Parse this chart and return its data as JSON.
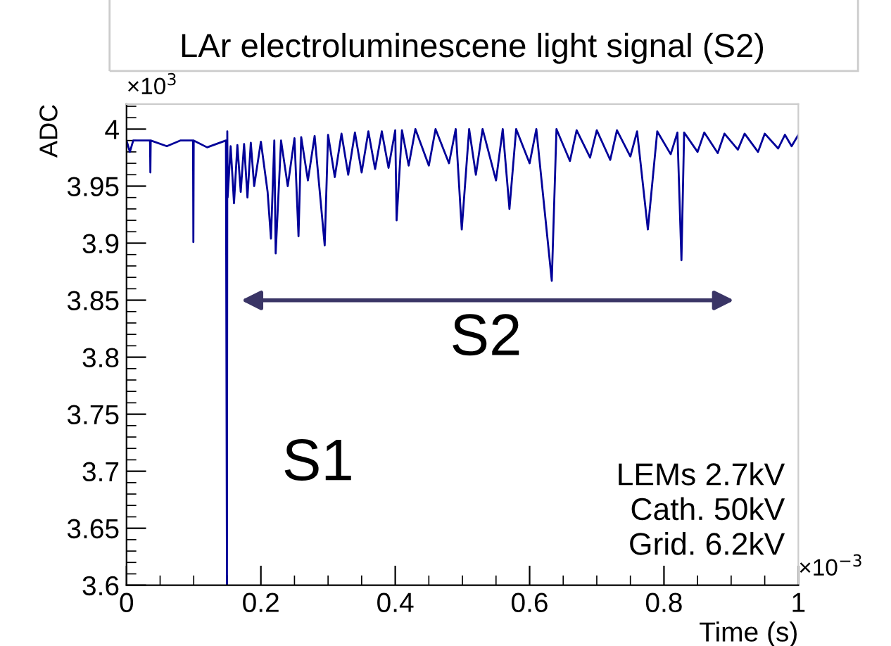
{
  "chart_data": {
    "type": "line",
    "title": "LAr electroluminescene light signal (S2)",
    "xlabel": "Time (s)",
    "ylabel": "ADC",
    "xlim": [
      0,
      1
    ],
    "ylim": [
      3.6,
      4.022
    ],
    "xticks": [
      0,
      0.2,
      0.4,
      0.6,
      0.8,
      1
    ],
    "yticks": [
      3.6,
      3.65,
      3.7,
      3.75,
      3.8,
      3.85,
      3.9,
      3.95,
      4
    ],
    "grid": false,
    "legend": false,
    "marker": "none",
    "line_style": "solid",
    "annotations": [
      "×10$^{3}$",
      "×10$^{−3}$",
      "S1",
      "S2",
      "LEMs 2.7kV\nCath. 50kV\nGrid. 6.2kV"
    ],
    "series": [
      {
        "color": "#000099",
        "x": [
          0,
          0.005,
          0.01,
          0.035,
          0.0355,
          0.036,
          0.06,
          0.08,
          0.099,
          0.0995,
          0.1,
          0.12,
          0.148,
          0.1495,
          0.15,
          0.1505,
          0.155,
          0.16,
          0.165,
          0.17,
          0.175,
          0.18,
          0.185,
          0.19,
          0.2,
          0.21,
          0.215,
          0.22,
          0.222,
          0.23,
          0.24,
          0.25,
          0.256,
          0.26,
          0.27,
          0.28,
          0.295,
          0.3,
          0.31,
          0.32,
          0.33,
          0.34,
          0.35,
          0.36,
          0.37,
          0.38,
          0.39,
          0.4,
          0.402,
          0.41,
          0.42,
          0.43,
          0.45,
          0.46,
          0.48,
          0.49,
          0.499,
          0.51,
          0.52,
          0.53,
          0.55,
          0.56,
          0.57,
          0.58,
          0.6,
          0.61,
          0.633,
          0.64,
          0.66,
          0.67,
          0.69,
          0.7,
          0.72,
          0.73,
          0.75,
          0.76,
          0.776,
          0.79,
          0.81,
          0.82,
          0.826,
          0.83,
          0.85,
          0.86,
          0.88,
          0.89,
          0.91,
          0.92,
          0.94,
          0.95,
          0.97,
          0.98,
          0.99,
          1
        ],
        "values": [
          3.99,
          3.98,
          3.99,
          3.99,
          3.962,
          3.99,
          3.985,
          3.99,
          3.99,
          3.901,
          3.99,
          3.984,
          3.99,
          3.6,
          3.998,
          3.94,
          3.985,
          3.935,
          3.986,
          3.945,
          3.987,
          3.94,
          3.988,
          3.95,
          3.989,
          3.945,
          3.904,
          3.99,
          3.891,
          3.99,
          3.95,
          3.992,
          3.906,
          3.993,
          3.955,
          3.994,
          3.898,
          3.995,
          3.958,
          3.996,
          3.96,
          3.997,
          3.962,
          3.998,
          3.965,
          3.998,
          3.966,
          3.999,
          3.92,
          3.999,
          3.968,
          4.0,
          3.968,
          4.0,
          3.97,
          4.0,
          3.912,
          4.0,
          3.96,
          4.0,
          3.955,
          4.0,
          3.93,
          4.0,
          3.97,
          4.0,
          3.867,
          4.0,
          3.972,
          3.999,
          3.975,
          3.999,
          3.973,
          3.999,
          3.976,
          3.998,
          3.912,
          3.998,
          3.978,
          3.997,
          3.885,
          3.997,
          3.98,
          3.997,
          3.979,
          3.996,
          3.982,
          3.996,
          3.98,
          3.996,
          3.983,
          3.995,
          3.985,
          3.995
        ]
      }
    ]
  }
}
